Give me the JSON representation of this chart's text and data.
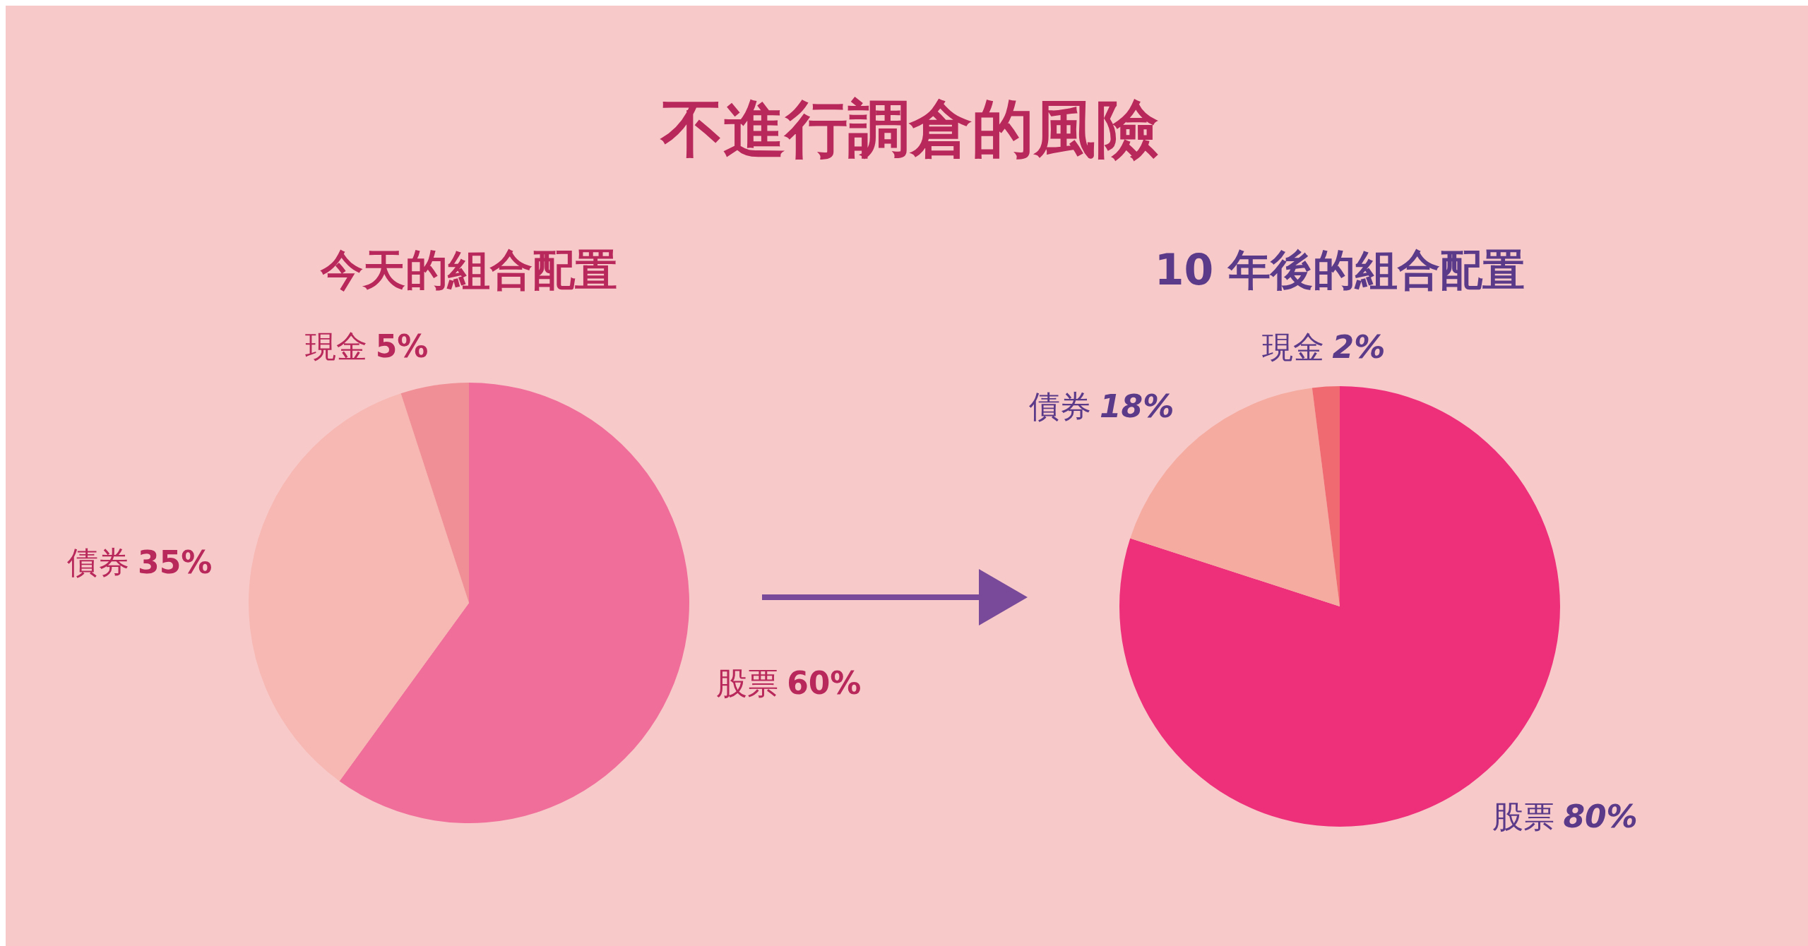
{
  "chart_data": [
    {
      "type": "pie",
      "title": "不進行調倉的風險",
      "subtitle": "今天的組合配置",
      "categories": [
        "股票",
        "債券",
        "現金"
      ],
      "values": [
        60,
        35,
        5
      ],
      "value_labels": [
        "60%",
        "35%",
        "5%"
      ],
      "colors": [
        "#f06f9a",
        "#f7b8b3",
        "#f09096"
      ]
    },
    {
      "type": "pie",
      "subtitle": "10 年後的組合配置",
      "categories": [
        "股票",
        "債券",
        "現金"
      ],
      "values": [
        80,
        18,
        2
      ],
      "value_labels": [
        "80%",
        "18%",
        "2%"
      ],
      "colors": [
        "#ee2f7a",
        "#f5aba0",
        "#f06a72"
      ]
    }
  ]
}
